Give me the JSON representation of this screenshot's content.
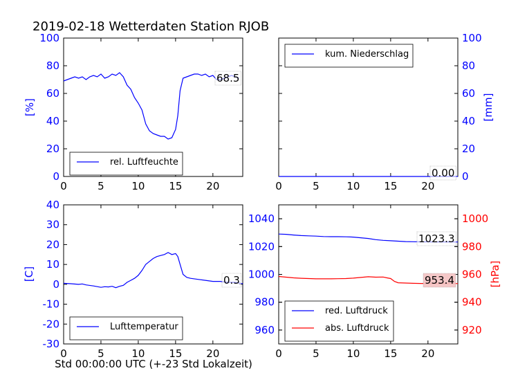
{
  "title": "2019-02-18 Wetterdaten Station RJOB",
  "xlabel": "Std 00:00:00 UTC (+-23 Std Lokalzeit)",
  "colors": {
    "blue": "#0000ff",
    "red": "#ff0000",
    "axis": "#000000",
    "tick_blue": "#0000ff",
    "tick_red": "#ff0000",
    "label_box_red": "#f4c2c2"
  },
  "chart_data": [
    {
      "type": "line",
      "panel": "top-left",
      "ylabel": "[%]",
      "xlim": [
        0,
        24
      ],
      "ylim": [
        0,
        100
      ],
      "xticks": [
        0,
        5,
        10,
        15,
        20
      ],
      "yticks": [
        0,
        20,
        40,
        60,
        80,
        100
      ],
      "legend_position": "lower-left",
      "series": [
        {
          "name": "rel. Luftfeuchte",
          "color": "#0000ff",
          "x": [
            0,
            0.5,
            1,
            1.5,
            2,
            2.5,
            3,
            3.5,
            4,
            4.5,
            5,
            5.5,
            6,
            6.5,
            7,
            7.5,
            8,
            8.5,
            9,
            9.5,
            10,
            10.5,
            11,
            11.5,
            12,
            12.5,
            13,
            13.5,
            14,
            14.5,
            15,
            15.3,
            15.6,
            16,
            16.5,
            17,
            17.5,
            18,
            18.5,
            19,
            19.5,
            20,
            20.5,
            21,
            21.5,
            22,
            22.5,
            23,
            23.5
          ],
          "y": [
            69,
            70,
            71,
            72,
            71,
            72,
            70,
            72,
            73,
            72,
            74,
            71,
            72,
            74,
            73,
            75,
            72,
            66,
            63,
            57,
            53,
            48,
            38,
            33,
            31,
            30,
            29,
            29,
            27,
            28,
            34,
            44,
            62,
            71,
            72,
            73,
            74,
            74,
            73,
            74,
            72,
            73,
            70,
            70,
            71,
            72,
            73,
            72,
            71
          ]
        }
      ],
      "last_value": "68.5"
    },
    {
      "type": "line",
      "panel": "top-right",
      "ylabel": "[mm]",
      "xlim": [
        0,
        24
      ],
      "ylim": [
        0,
        100
      ],
      "xticks": [
        0,
        5,
        10,
        15,
        20
      ],
      "yticks": [
        0,
        20,
        40,
        60,
        80,
        100
      ],
      "legend_position": "upper-left",
      "series": [
        {
          "name": "kum. Niederschlag",
          "color": "#0000ff",
          "x": [
            0,
            24
          ],
          "y": [
            0,
            0
          ]
        }
      ],
      "last_value": "0.00"
    },
    {
      "type": "line",
      "panel": "bottom-left",
      "ylabel": "[C]",
      "xlim": [
        0,
        24
      ],
      "ylim": [
        -30,
        40
      ],
      "xticks": [
        0,
        5,
        10,
        15,
        20
      ],
      "yticks": [
        -30,
        -20,
        -10,
        0,
        10,
        20,
        30,
        40
      ],
      "legend_position": "lower-left",
      "series": [
        {
          "name": "Lufttemperatur",
          "color": "#0000ff",
          "x": [
            0,
            1,
            2,
            2.5,
            3,
            4,
            5,
            5.5,
            6,
            6.5,
            7,
            7.5,
            8,
            8.5,
            9,
            9.5,
            10,
            10.5,
            11,
            11.5,
            12,
            12.5,
            13,
            13.5,
            14,
            14.5,
            15,
            15.3,
            15.6,
            16,
            16.5,
            17,
            18,
            19,
            20,
            21,
            22,
            23,
            24
          ],
          "y": [
            0.5,
            0.3,
            0,
            0.2,
            -0.3,
            -0.8,
            -1.5,
            -1.2,
            -1.3,
            -1,
            -1.7,
            -1,
            -0.5,
            1,
            2,
            3,
            4.5,
            7,
            10,
            11.5,
            13,
            14,
            14.5,
            15,
            16,
            15,
            15.5,
            14,
            10,
            5,
            3.5,
            3,
            2.5,
            2,
            1.5,
            1.5,
            1,
            1,
            0.3
          ]
        }
      ],
      "last_value": "0.3"
    },
    {
      "type": "line",
      "panel": "bottom-right",
      "ylabel": "[hPa]",
      "xlim": [
        0,
        24
      ],
      "ylim_left": [
        950,
        1050
      ],
      "ylim_right": [
        910,
        1010
      ],
      "xticks": [
        0,
        5,
        10,
        15,
        20
      ],
      "yticks_left": [
        960,
        980,
        1000,
        1020,
        1040
      ],
      "yticks_right": [
        920,
        940,
        960,
        980,
        1000
      ],
      "legend_position": "lower-left",
      "series": [
        {
          "name": "red. Luftdruck",
          "color": "#0000ff",
          "axis": "left",
          "x": [
            0,
            1,
            2,
            3,
            4,
            5,
            6,
            7,
            8,
            9,
            10,
            11,
            12,
            13,
            14,
            15,
            16,
            17,
            18,
            19,
            20,
            21,
            22,
            23,
            24
          ],
          "y": [
            1029,
            1028.8,
            1028.3,
            1027.9,
            1027.7,
            1027.5,
            1027.2,
            1027.1,
            1027.1,
            1027,
            1026.8,
            1026.3,
            1025.8,
            1025,
            1024.5,
            1024.2,
            1023.9,
            1023.6,
            1023.5,
            1023.4,
            1023.4,
            1023.3,
            1023.3,
            1023.3,
            1023.3
          ]
        },
        {
          "name": "abs. Luftdruck",
          "color": "#ff0000",
          "axis": "right",
          "x": [
            0,
            1,
            2,
            3,
            4,
            5,
            6,
            7,
            8,
            9,
            10,
            11,
            12,
            13,
            14,
            14.5,
            15,
            15.5,
            16,
            17,
            18,
            19,
            20,
            21,
            22,
            23,
            24
          ],
          "y": [
            958.5,
            958,
            957.5,
            957.2,
            957,
            956.8,
            956.8,
            956.8,
            956.9,
            957,
            957.3,
            957.8,
            958.3,
            958,
            958.1,
            957.5,
            957,
            955,
            954,
            953.8,
            953.6,
            953.5,
            953.4,
            953.4,
            953.4,
            953.4,
            953.4
          ]
        }
      ],
      "last_value_left": "1023.3",
      "last_value_right": "953.4"
    }
  ]
}
